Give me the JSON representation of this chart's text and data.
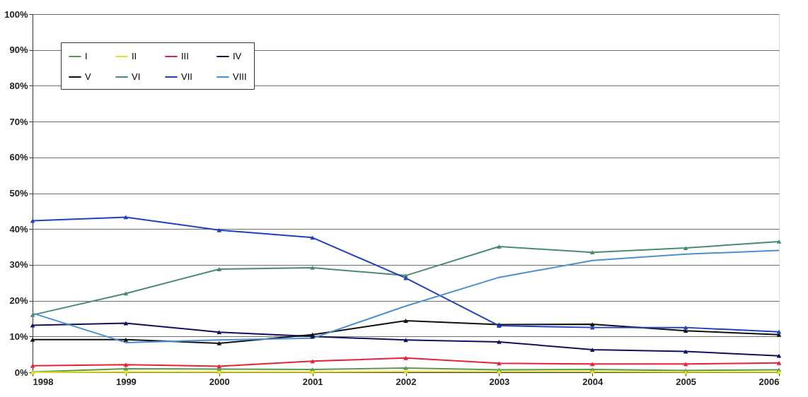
{
  "chart_data": {
    "type": "line",
    "x": [
      1998,
      1999,
      2000,
      2001,
      2002,
      2003,
      2004,
      2005,
      2006
    ],
    "xlim": [
      1998,
      2006
    ],
    "xticks": [
      1998,
      1999,
      2000,
      2001,
      2002,
      2003,
      2004,
      2005,
      2006
    ],
    "ylim": [
      0,
      100
    ],
    "yticks": [
      {
        "value": 0,
        "label": "0%"
      },
      {
        "value": 10,
        "label": "10%"
      },
      {
        "value": 20,
        "label": "20%"
      },
      {
        "value": 30,
        "label": "30%"
      },
      {
        "value": 40,
        "label": "40%"
      },
      {
        "value": 50,
        "label": "50%"
      },
      {
        "value": 60,
        "label": "60%"
      },
      {
        "value": 70,
        "label": "70%"
      },
      {
        "value": 80,
        "label": "80%"
      },
      {
        "value": 90,
        "label": "90%"
      },
      {
        "value": 100,
        "label": "100%"
      }
    ],
    "grid": "y",
    "legend": "top left",
    "marker": "triangle",
    "line_style": "solid",
    "series": [
      {
        "name": "I",
        "color": "#5a9a50",
        "values": [
          0.1,
          1.0,
          0.9,
          0.8,
          1.2,
          0.7,
          0.8,
          0.5,
          0.7
        ]
      },
      {
        "name": "II",
        "color": "#e8e020",
        "values": [
          0,
          0.1,
          0.1,
          0.1,
          0.2,
          0.2,
          0.2,
          0.1,
          0.1
        ]
      },
      {
        "name": "III",
        "color": "#e8203a",
        "values": [
          1.8,
          2.1,
          1.7,
          3.1,
          4.0,
          2.5,
          2.3,
          2.3,
          2.6
        ]
      },
      {
        "name": "IV",
        "color": "#101060",
        "values": [
          13.1,
          13.7,
          11.2,
          10.0,
          9.0,
          8.5,
          6.3,
          5.8,
          4.6
        ]
      },
      {
        "name": "V",
        "color": "#101010",
        "values": [
          9.1,
          9.1,
          8.1,
          10.5,
          14.4,
          13.3,
          13.4,
          11.6,
          10.5
        ]
      },
      {
        "name": "VI",
        "color": "#4a8a70",
        "values": [
          16.0,
          22.0,
          28.8,
          29.2,
          27.0,
          35.1,
          33.5,
          34.7,
          36.5
        ]
      },
      {
        "name": "VII",
        "color": "#2040c0",
        "values": [
          42.3,
          43.3,
          39.7,
          37.6,
          26.3,
          13.0,
          12.5,
          12.5,
          11.3
        ]
      },
      {
        "name": "VIII",
        "color": "#4a90d0",
        "marker": "none",
        "values": [
          16.5,
          8.3,
          9.0,
          9.5,
          18.5,
          26.5,
          31.2,
          33.0,
          34.0
        ]
      }
    ]
  }
}
